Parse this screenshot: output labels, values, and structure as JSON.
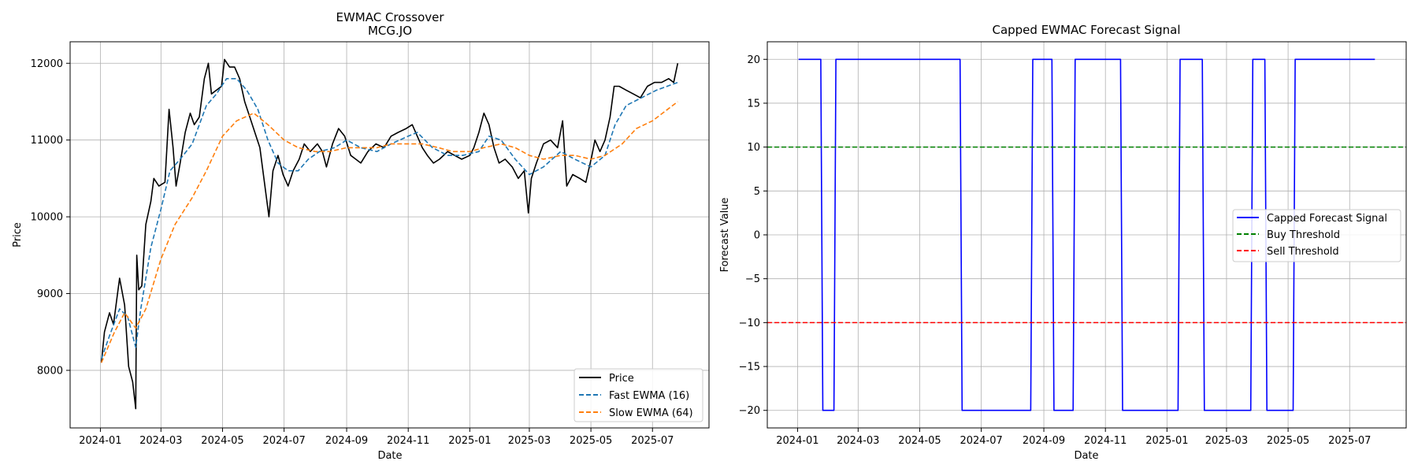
{
  "chart_data": [
    {
      "type": "line",
      "title": "EWMAC Crossover",
      "subtitle": "MCG.JO",
      "xlabel": "Date",
      "ylabel": "Price",
      "xlim": [
        "2023-12-02",
        "2025-08-26"
      ],
      "ylim": [
        7250,
        12280
      ],
      "x_ticks": [
        "2024-01",
        "2024-03",
        "2024-05",
        "2024-07",
        "2024-09",
        "2024-11",
        "2025-01",
        "2025-03",
        "2025-05",
        "2025-07"
      ],
      "y_ticks": [
        8000,
        9000,
        10000,
        11000,
        12000
      ],
      "grid": true,
      "legend_position": "lower right",
      "series": [
        {
          "name": "Price",
          "color": "#000000",
          "dash": "solid",
          "points": [
            [
              "2024-01-02",
              8100
            ],
            [
              "2024-01-05",
              8500
            ],
            [
              "2024-01-10",
              8750
            ],
            [
              "2024-01-14",
              8600
            ],
            [
              "2024-01-18",
              9000
            ],
            [
              "2024-01-20",
              9200
            ],
            [
              "2024-01-25",
              8850
            ],
            [
              "2024-01-29",
              8050
            ],
            [
              "2024-02-02",
              7850
            ],
            [
              "2024-02-05",
              7500
            ],
            [
              "2024-02-06",
              9500
            ],
            [
              "2024-02-08",
              9050
            ],
            [
              "2024-02-11",
              9100
            ],
            [
              "2024-02-15",
              9900
            ],
            [
              "2024-02-20",
              10200
            ],
            [
              "2024-02-23",
              10500
            ],
            [
              "2024-02-28",
              10400
            ],
            [
              "2024-03-05",
              10450
            ],
            [
              "2024-03-09",
              11400
            ],
            [
              "2024-03-13",
              10900
            ],
            [
              "2024-03-16",
              10400
            ],
            [
              "2024-03-20",
              10700
            ],
            [
              "2024-03-25",
              11100
            ],
            [
              "2024-03-30",
              11350
            ],
            [
              "2024-04-03",
              11200
            ],
            [
              "2024-04-08",
              11300
            ],
            [
              "2024-04-13",
              11800
            ],
            [
              "2024-04-17",
              12000
            ],
            [
              "2024-04-20",
              11600
            ],
            [
              "2024-04-25",
              11650
            ],
            [
              "2024-04-30",
              11700
            ],
            [
              "2024-05-03",
              12050
            ],
            [
              "2024-05-08",
              11950
            ],
            [
              "2024-05-13",
              11950
            ],
            [
              "2024-05-18",
              11800
            ],
            [
              "2024-05-23",
              11500
            ],
            [
              "2024-05-28",
              11300
            ],
            [
              "2024-06-02",
              11100
            ],
            [
              "2024-06-07",
              10900
            ],
            [
              "2024-06-11",
              10500
            ],
            [
              "2024-06-16",
              10000
            ],
            [
              "2024-06-20",
              10600
            ],
            [
              "2024-06-25",
              10800
            ],
            [
              "2024-06-30",
              10550
            ],
            [
              "2024-07-05",
              10400
            ],
            [
              "2024-07-10",
              10600
            ],
            [
              "2024-07-16",
              10750
            ],
            [
              "2024-07-21",
              10950
            ],
            [
              "2024-07-27",
              10850
            ],
            [
              "2024-08-03",
              10950
            ],
            [
              "2024-08-08",
              10850
            ],
            [
              "2024-08-12",
              10650
            ],
            [
              "2024-08-18",
              10950
            ],
            [
              "2024-08-24",
              11150
            ],
            [
              "2024-08-30",
              11050
            ],
            [
              "2024-09-05",
              10800
            ],
            [
              "2024-09-10",
              10750
            ],
            [
              "2024-09-15",
              10700
            ],
            [
              "2024-09-22",
              10850
            ],
            [
              "2024-09-30",
              10950
            ],
            [
              "2024-10-08",
              10900
            ],
            [
              "2024-10-15",
              11050
            ],
            [
              "2024-10-22",
              11100
            ],
            [
              "2024-10-30",
              11150
            ],
            [
              "2024-11-05",
              11200
            ],
            [
              "2024-11-10",
              11050
            ],
            [
              "2024-11-15",
              10900
            ],
            [
              "2024-11-20",
              10800
            ],
            [
              "2024-11-26",
              10700
            ],
            [
              "2024-12-02",
              10750
            ],
            [
              "2024-12-10",
              10850
            ],
            [
              "2024-12-17",
              10800
            ],
            [
              "2024-12-24",
              10750
            ],
            [
              "2025-01-01",
              10800
            ],
            [
              "2025-01-05",
              10900
            ],
            [
              "2025-01-10",
              11100
            ],
            [
              "2025-01-15",
              11350
            ],
            [
              "2025-01-20",
              11200
            ],
            [
              "2025-01-25",
              10900
            ],
            [
              "2025-01-30",
              10700
            ],
            [
              "2025-02-05",
              10750
            ],
            [
              "2025-02-12",
              10650
            ],
            [
              "2025-02-18",
              10500
            ],
            [
              "2025-02-24",
              10600
            ],
            [
              "2025-02-28",
              10050
            ],
            [
              "2025-03-03",
              10500
            ],
            [
              "2025-03-08",
              10700
            ],
            [
              "2025-03-15",
              10950
            ],
            [
              "2025-03-22",
              11000
            ],
            [
              "2025-03-29",
              10900
            ],
            [
              "2025-04-03",
              11250
            ],
            [
              "2025-04-07",
              10400
            ],
            [
              "2025-04-13",
              10550
            ],
            [
              "2025-04-20",
              10500
            ],
            [
              "2025-04-26",
              10450
            ],
            [
              "2025-05-02",
              10800
            ],
            [
              "2025-05-05",
              11000
            ],
            [
              "2025-05-10",
              10850
            ],
            [
              "2025-05-15",
              11000
            ],
            [
              "2025-05-20",
              11300
            ],
            [
              "2025-05-24",
              11700
            ],
            [
              "2025-05-29",
              11700
            ],
            [
              "2025-06-05",
              11650
            ],
            [
              "2025-06-12",
              11600
            ],
            [
              "2025-06-19",
              11550
            ],
            [
              "2025-06-26",
              11700
            ],
            [
              "2025-07-03",
              11750
            ],
            [
              "2025-07-10",
              11750
            ],
            [
              "2025-07-17",
              11800
            ],
            [
              "2025-07-22",
              11750
            ],
            [
              "2025-07-26",
              12000
            ]
          ]
        },
        {
          "name": "Fast EWMA (16)",
          "color": "#1f77b4",
          "dash": "dashed",
          "points": [
            [
              "2024-01-02",
              8150
            ],
            [
              "2024-01-10",
              8450
            ],
            [
              "2024-01-20",
              8800
            ],
            [
              "2024-01-28",
              8700
            ],
            [
              "2024-02-05",
              8300
            ],
            [
              "2024-02-10",
              8800
            ],
            [
              "2024-02-20",
              9600
            ],
            [
              "2024-03-01",
              10100
            ],
            [
              "2024-03-10",
              10600
            ],
            [
              "2024-03-20",
              10750
            ],
            [
              "2024-04-01",
              10950
            ],
            [
              "2024-04-15",
              11450
            ],
            [
              "2024-04-25",
              11600
            ],
            [
              "2024-05-05",
              11800
            ],
            [
              "2024-05-15",
              11800
            ],
            [
              "2024-05-25",
              11650
            ],
            [
              "2024-06-05",
              11400
            ],
            [
              "2024-06-15",
              11000
            ],
            [
              "2024-06-25",
              10700
            ],
            [
              "2024-07-05",
              10600
            ],
            [
              "2024-07-15",
              10600
            ],
            [
              "2024-07-25",
              10750
            ],
            [
              "2024-08-05",
              10850
            ],
            [
              "2024-08-20",
              10900
            ],
            [
              "2024-09-01",
              11000
            ],
            [
              "2024-09-15",
              10900
            ],
            [
              "2024-10-01",
              10850
            ],
            [
              "2024-10-15",
              10950
            ],
            [
              "2024-11-01",
              11050
            ],
            [
              "2024-11-10",
              11100
            ],
            [
              "2024-11-25",
              10900
            ],
            [
              "2024-12-10",
              10800
            ],
            [
              "2024-12-25",
              10800
            ],
            [
              "2025-01-10",
              10850
            ],
            [
              "2025-01-20",
              11050
            ],
            [
              "2025-02-01",
              11000
            ],
            [
              "2025-02-15",
              10750
            ],
            [
              "2025-03-01",
              10550
            ],
            [
              "2025-03-15",
              10650
            ],
            [
              "2025-04-01",
              10850
            ],
            [
              "2025-04-15",
              10750
            ],
            [
              "2025-05-01",
              10650
            ],
            [
              "2025-05-15",
              10800
            ],
            [
              "2025-05-25",
              11200
            ],
            [
              "2025-06-05",
              11450
            ],
            [
              "2025-06-20",
              11550
            ],
            [
              "2025-07-05",
              11650
            ],
            [
              "2025-07-26",
              11750
            ]
          ]
        },
        {
          "name": "Slow EWMA (64)",
          "color": "#ff7f0e",
          "dash": "dashed",
          "points": [
            [
              "2024-01-02",
              8100
            ],
            [
              "2024-01-15",
              8500
            ],
            [
              "2024-01-25",
              8750
            ],
            [
              "2024-02-05",
              8550
            ],
            [
              "2024-02-15",
              8800
            ],
            [
              "2024-03-01",
              9450
            ],
            [
              "2024-03-15",
              9900
            ],
            [
              "2024-04-01",
              10250
            ],
            [
              "2024-04-15",
              10600
            ],
            [
              "2024-05-01",
              11050
            ],
            [
              "2024-05-15",
              11250
            ],
            [
              "2024-06-01",
              11350
            ],
            [
              "2024-06-15",
              11200
            ],
            [
              "2024-07-01",
              11000
            ],
            [
              "2024-07-15",
              10900
            ],
            [
              "2024-08-01",
              10850
            ],
            [
              "2024-08-15",
              10850
            ],
            [
              "2024-09-01",
              10900
            ],
            [
              "2024-09-15",
              10900
            ],
            [
              "2024-10-01",
              10900
            ],
            [
              "2024-10-15",
              10950
            ],
            [
              "2024-11-01",
              10950
            ],
            [
              "2024-11-15",
              10950
            ],
            [
              "2024-12-01",
              10900
            ],
            [
              "2024-12-15",
              10850
            ],
            [
              "2025-01-01",
              10850
            ],
            [
              "2025-01-15",
              10900
            ],
            [
              "2025-02-01",
              10950
            ],
            [
              "2025-02-15",
              10900
            ],
            [
              "2025-03-01",
              10800
            ],
            [
              "2025-03-15",
              10750
            ],
            [
              "2025-04-01",
              10800
            ],
            [
              "2025-04-15",
              10800
            ],
            [
              "2025-05-01",
              10750
            ],
            [
              "2025-05-15",
              10800
            ],
            [
              "2025-06-01",
              10950
            ],
            [
              "2025-06-15",
              11150
            ],
            [
              "2025-07-01",
              11250
            ],
            [
              "2025-07-26",
              11500
            ]
          ]
        }
      ]
    },
    {
      "type": "line",
      "title": "Capped EWMAC Forecast Signal",
      "xlabel": "Date",
      "ylabel": "Forecast Value",
      "xlim": [
        "2023-12-02",
        "2025-08-26"
      ],
      "ylim": [
        -22,
        22
      ],
      "x_ticks": [
        "2024-01",
        "2024-03",
        "2024-05",
        "2024-07",
        "2024-09",
        "2024-11",
        "2025-01",
        "2025-03",
        "2025-05",
        "2025-07"
      ],
      "y_ticks": [
        20,
        15,
        10,
        5,
        0,
        -5,
        -10,
        -15,
        -20
      ],
      "grid": true,
      "legend_position": "center right",
      "series": [
        {
          "name": "Capped Forecast Signal",
          "color": "#0000ff",
          "dash": "solid",
          "points": [
            [
              "2024-01-02",
              20
            ],
            [
              "2024-01-24",
              20
            ],
            [
              "2024-01-26",
              -20
            ],
            [
              "2024-02-06",
              -20
            ],
            [
              "2024-02-08",
              20
            ],
            [
              "2024-06-10",
              20
            ],
            [
              "2024-06-12",
              -20
            ],
            [
              "2024-08-19",
              -20
            ],
            [
              "2024-08-21",
              20
            ],
            [
              "2024-09-09",
              20
            ],
            [
              "2024-09-11",
              -20
            ],
            [
              "2024-09-30",
              -20
            ],
            [
              "2024-10-02",
              20
            ],
            [
              "2024-11-16",
              20
            ],
            [
              "2024-11-18",
              -20
            ],
            [
              "2025-01-12",
              -20
            ],
            [
              "2025-01-14",
              20
            ],
            [
              "2025-02-05",
              20
            ],
            [
              "2025-02-07",
              -20
            ],
            [
              "2025-03-25",
              -20
            ],
            [
              "2025-03-27",
              20
            ],
            [
              "2025-04-08",
              20
            ],
            [
              "2025-04-10",
              -20
            ],
            [
              "2025-05-06",
              -20
            ],
            [
              "2025-05-08",
              20
            ],
            [
              "2025-07-26",
              20
            ]
          ]
        },
        {
          "name": "Buy Threshold",
          "color": "#008000",
          "dash": "dashed",
          "hline": 10
        },
        {
          "name": "Sell Threshold",
          "color": "#ff0000",
          "dash": "dashed",
          "hline": -10
        }
      ]
    }
  ]
}
